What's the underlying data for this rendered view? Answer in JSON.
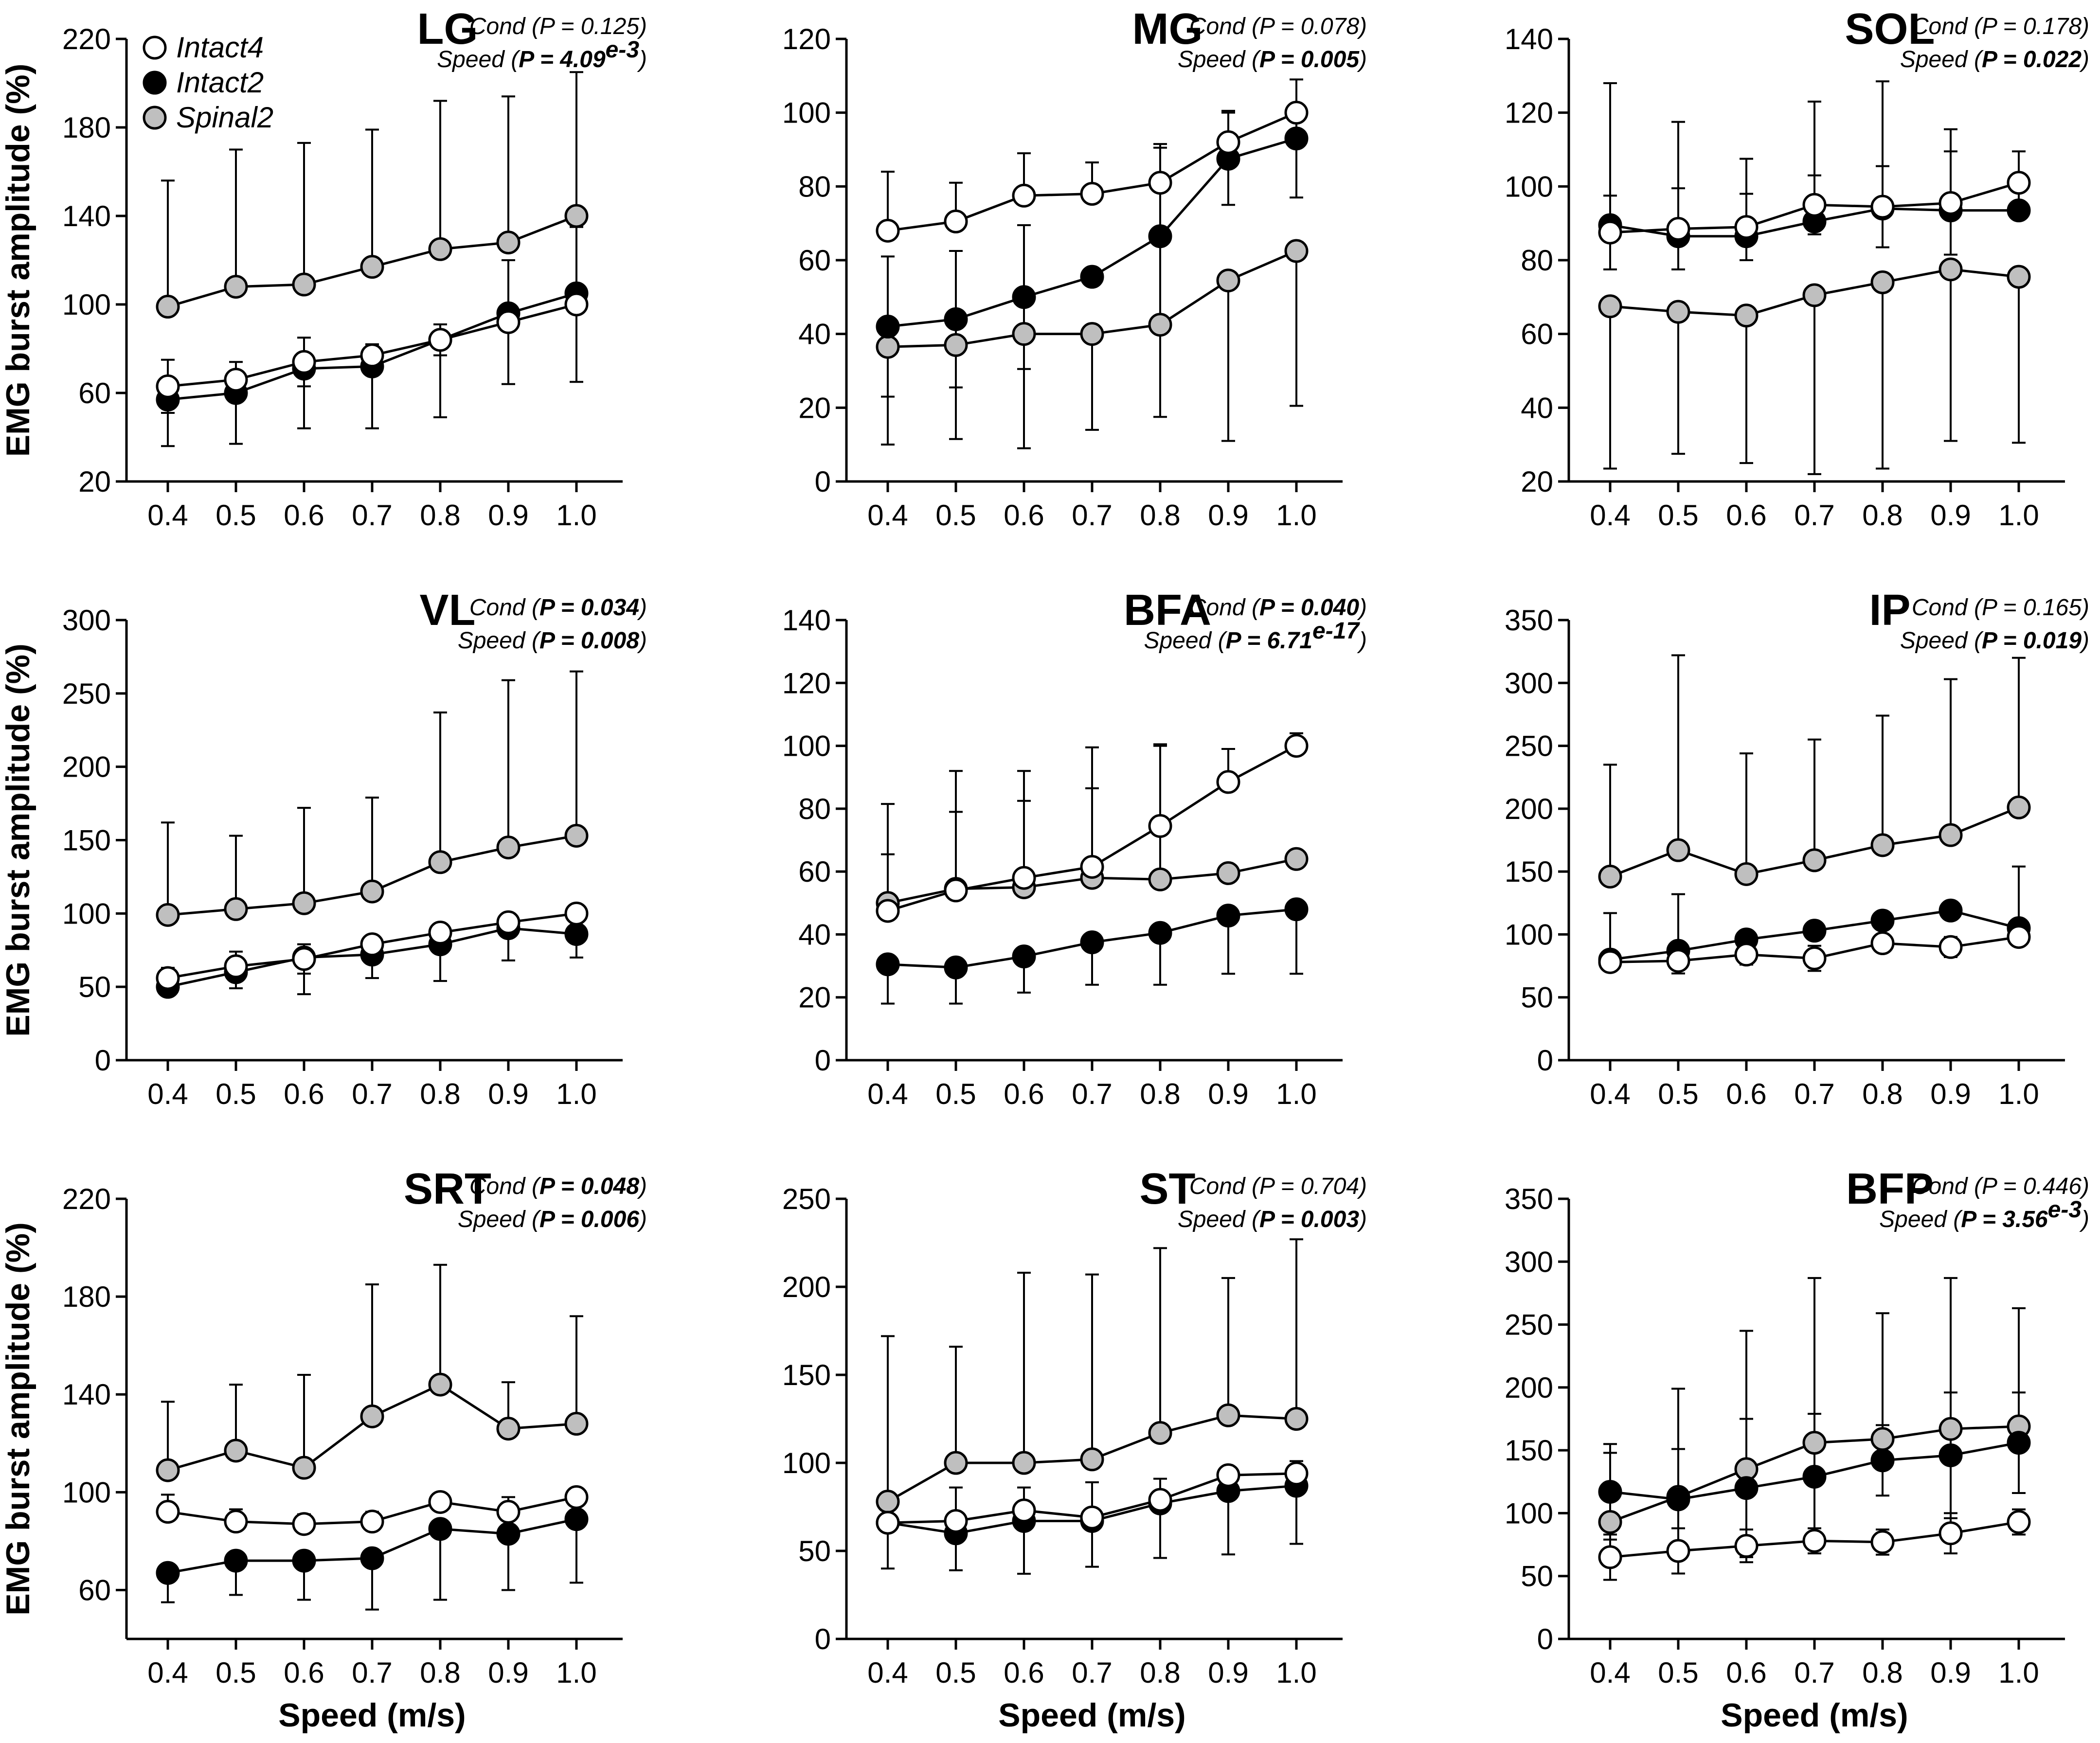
{
  "figure": {
    "ylabel": "EMG burst amplitude (%)",
    "xlabel": "Speed (m/s)"
  },
  "legend": {
    "intact4": "Intact4",
    "intact2": "Intact2",
    "spinal2": "Spinal2"
  },
  "colors": {
    "intact4": "#ffffff",
    "intact2": "#000000",
    "spinal2": "#bfbfbf",
    "stroke": "#000000"
  },
  "chart_data": [
    {
      "type": "line",
      "title": "LG",
      "xlabel": "",
      "ylabel": "EMG burst amplitude (%)",
      "stat_cond": {
        "prefix": "Cond (",
        "value": "P = 0.125",
        "exp": "",
        "suffix": ")",
        "bold": false
      },
      "stat_speed": {
        "prefix": "Speed (",
        "value": "P = 4.09",
        "exp": "e-3",
        "suffix": ")",
        "bold": true
      },
      "x": [
        "0.4",
        "0.5",
        "0.6",
        "0.7",
        "0.8",
        "0.9",
        "1.0"
      ],
      "ylim": [
        20,
        220
      ],
      "yticks": [
        "20",
        "60",
        "100",
        "140",
        "180",
        "220"
      ],
      "series": [
        {
          "name": "Spinal2",
          "values": [
            99,
            108,
            109,
            117,
            125,
            128,
            140
          ],
          "err": [
            57,
            62,
            64,
            62,
            67,
            66,
            65
          ],
          "err_dir": "up"
        },
        {
          "name": "Intact2",
          "values": [
            57,
            60,
            71,
            72,
            84,
            96,
            105
          ],
          "err": [
            21,
            23,
            27,
            28,
            35,
            0,
            0
          ],
          "err_dir": "down"
        },
        {
          "name": "Intact4",
          "values": [
            63,
            66,
            74,
            77,
            84,
            92,
            100
          ],
          "err": [
            12,
            8,
            11,
            5,
            7,
            28,
            35
          ],
          "err_dir": "both"
        }
      ]
    },
    {
      "type": "line",
      "title": "MG",
      "xlabel": "",
      "ylabel": "",
      "stat_cond": {
        "prefix": "Cond (",
        "value": "P = 0.078",
        "exp": "",
        "suffix": ")",
        "bold": false
      },
      "stat_speed": {
        "prefix": "Speed (",
        "value": "P = 0.005",
        "exp": "",
        "suffix": ")",
        "bold": true
      },
      "x": [
        "0.4",
        "0.5",
        "0.6",
        "0.7",
        "0.8",
        "0.9",
        "1.0"
      ],
      "ylim": [
        0,
        120
      ],
      "yticks": [
        "0",
        "20",
        "40",
        "60",
        "80",
        "100",
        "120"
      ],
      "series": [
        {
          "name": "Spinal2",
          "values": [
            36.5,
            37,
            40,
            40,
            42.5,
            54.5,
            62.5
          ],
          "err": [
            26.5,
            25.5,
            31,
            26,
            25,
            43.5,
            42
          ],
          "err_dir": "down"
        },
        {
          "name": "Intact2",
          "values": [
            42,
            44,
            50,
            55.5,
            66.5,
            87.5,
            93
          ],
          "err": [
            19,
            18.5,
            19.5,
            0,
            24,
            12.5,
            16
          ],
          "err_dir": "both"
        },
        {
          "name": "Intact4",
          "values": [
            68,
            70.5,
            77.5,
            78,
            81,
            92,
            100
          ],
          "err": [
            16,
            10.5,
            11.5,
            8.5,
            10.5,
            8.5,
            0
          ],
          "err_dir": "up"
        }
      ]
    },
    {
      "type": "line",
      "title": "SOL",
      "xlabel": "",
      "ylabel": "",
      "stat_cond": {
        "prefix": "Cond (",
        "value": "P = 0.178",
        "exp": "",
        "suffix": ")",
        "bold": false
      },
      "stat_speed": {
        "prefix": "Speed (",
        "value": "P = 0.022",
        "exp": "",
        "suffix": ")",
        "bold": true
      },
      "x": [
        "0.4",
        "0.5",
        "0.6",
        "0.7",
        "0.8",
        "0.9",
        "1.0"
      ],
      "ylim": [
        20,
        140
      ],
      "yticks": [
        "20",
        "40",
        "60",
        "80",
        "100",
        "120",
        "140"
      ],
      "series": [
        {
          "name": "Spinal2",
          "values": [
            67.5,
            66,
            65,
            70.5,
            74,
            77.5,
            75.5
          ],
          "err": [
            44,
            38.5,
            40,
            48.5,
            50.5,
            46.5,
            45
          ],
          "err_dir": "down"
        },
        {
          "name": "Intact2",
          "values": [
            89.5,
            86.5,
            86.5,
            90.5,
            94,
            93.5,
            93.5
          ],
          "err": [
            38.5,
            31,
            21,
            32.5,
            34.5,
            22,
            0
          ],
          "err_dir": "up"
        },
        {
          "name": "Intact4",
          "values": [
            87.5,
            88.5,
            89,
            95,
            94.5,
            95.5,
            101
          ],
          "err": [
            10,
            11,
            9,
            8,
            11,
            14,
            8.5
          ],
          "err_dir": "both"
        }
      ]
    },
    {
      "type": "line",
      "title": "VL",
      "xlabel": "",
      "ylabel": "EMG burst amplitude (%)",
      "stat_cond": {
        "prefix": "Cond (",
        "value": "P = 0.034",
        "exp": "",
        "suffix": ")",
        "bold": true
      },
      "stat_speed": {
        "prefix": "Speed (",
        "value": "P = 0.008",
        "exp": "",
        "suffix": ")",
        "bold": true
      },
      "x": [
        "0.4",
        "0.5",
        "0.6",
        "0.7",
        "0.8",
        "0.9",
        "1.0"
      ],
      "ylim": [
        0,
        300
      ],
      "yticks": [
        "0",
        "50",
        "100",
        "150",
        "200",
        "250",
        "300"
      ],
      "series": [
        {
          "name": "Spinal2",
          "values": [
            99,
            103,
            107,
            115,
            135,
            145,
            153
          ],
          "err": [
            63,
            50,
            65,
            64,
            102,
            114,
            112
          ],
          "err_dir": "up"
        },
        {
          "name": "Intact2",
          "values": [
            50,
            60,
            70,
            72,
            79,
            90,
            86
          ],
          "err": [
            0,
            11,
            25,
            16,
            25,
            22,
            16
          ],
          "err_dir": "down"
        },
        {
          "name": "Intact4",
          "values": [
            56,
            64,
            69,
            79,
            87,
            94,
            100
          ],
          "err": [
            7,
            10,
            10,
            6,
            0,
            0,
            0
          ],
          "err_dir": "both"
        }
      ]
    },
    {
      "type": "line",
      "title": "BFA",
      "xlabel": "",
      "ylabel": "",
      "stat_cond": {
        "prefix": "Cond (",
        "value": "P = 0.040",
        "exp": "",
        "suffix": ")",
        "bold": true
      },
      "stat_speed": {
        "prefix": "Speed (",
        "value": "P = 6.71",
        "exp": "e-17",
        "suffix": ")",
        "bold": true
      },
      "x": [
        "0.4",
        "0.5",
        "0.6",
        "0.7",
        "0.8",
        "0.9",
        "1.0"
      ],
      "ylim": [
        0,
        140
      ],
      "yticks": [
        "0",
        "20",
        "40",
        "60",
        "80",
        "100",
        "120",
        "140"
      ],
      "series": [
        {
          "name": "Spinal2",
          "values": [
            50,
            54.5,
            55,
            58,
            57.5,
            59.5,
            64
          ],
          "err": [
            31.5,
            37.5,
            37,
            41.5,
            42.5,
            0,
            0
          ],
          "err_dir": "up"
        },
        {
          "name": "Intact2",
          "values": [
            30.5,
            29.5,
            33,
            37.5,
            40.5,
            46,
            48
          ],
          "err": [
            12.5,
            11.5,
            11.5,
            13.5,
            16.5,
            18.5,
            20.5
          ],
          "err_dir": "down"
        },
        {
          "name": "Intact4",
          "values": [
            47.5,
            54,
            58,
            61.5,
            74.5,
            88.5,
            100
          ],
          "err": [
            18,
            25,
            24.5,
            25,
            26,
            10.5,
            4
          ],
          "err_dir": "up"
        }
      ]
    },
    {
      "type": "line",
      "title": "IP",
      "xlabel": "",
      "ylabel": "",
      "stat_cond": {
        "prefix": "Cond (",
        "value": "P = 0.165",
        "exp": "",
        "suffix": ")",
        "bold": false
      },
      "stat_speed": {
        "prefix": "Speed (",
        "value": "P = 0.019",
        "exp": "",
        "suffix": ")",
        "bold": true
      },
      "x": [
        "0.4",
        "0.5",
        "0.6",
        "0.7",
        "0.8",
        "0.9",
        "1.0"
      ],
      "ylim": [
        0,
        350
      ],
      "yticks": [
        "0",
        "50",
        "100",
        "150",
        "200",
        "250",
        "300",
        "350"
      ],
      "series": [
        {
          "name": "Spinal2",
          "values": [
            146,
            167,
            148,
            159,
            171,
            179,
            201
          ],
          "err": [
            89,
            155,
            96,
            96,
            103,
            124,
            119
          ],
          "err_dir": "up"
        },
        {
          "name": "Intact2",
          "values": [
            80,
            87,
            96,
            103,
            111,
            119,
            105
          ],
          "err": [
            37,
            45,
            0,
            0,
            0,
            0,
            49
          ],
          "err_dir": "up"
        },
        {
          "name": "Intact4",
          "values": [
            78,
            79,
            84,
            81,
            93,
            90,
            98
          ],
          "err": [
            5,
            10,
            8,
            10,
            0,
            8,
            0
          ],
          "err_dir": "both"
        }
      ]
    },
    {
      "type": "line",
      "title": "SRT",
      "xlabel": "Speed (m/s)",
      "ylabel": "EMG burst amplitude (%)",
      "stat_cond": {
        "prefix": "Cond (",
        "value": "P = 0.048",
        "exp": "",
        "suffix": ")",
        "bold": true
      },
      "stat_speed": {
        "prefix": "Speed (",
        "value": "P = 0.006",
        "exp": "",
        "suffix": ")",
        "bold": true
      },
      "x": [
        "0.4",
        "0.5",
        "0.6",
        "0.7",
        "0.8",
        "0.9",
        "1.0"
      ],
      "ylim": [
        40,
        220
      ],
      "yticks": [
        "60",
        "100",
        "140",
        "180",
        "220"
      ],
      "series": [
        {
          "name": "Spinal2",
          "values": [
            109,
            117,
            110,
            131,
            144,
            126,
            128
          ],
          "err": [
            28,
            27,
            38,
            54,
            49,
            19,
            44
          ],
          "err_dir": "up"
        },
        {
          "name": "Intact2",
          "values": [
            67,
            72,
            72,
            73,
            85,
            83,
            89
          ],
          "err": [
            12,
            14,
            16,
            21,
            29,
            23,
            26
          ],
          "err_dir": "down"
        },
        {
          "name": "Intact4",
          "values": [
            92,
            88,
            87,
            88,
            96,
            92,
            98
          ],
          "err": [
            7,
            5,
            4,
            4,
            0,
            6,
            0
          ],
          "err_dir": "up"
        }
      ]
    },
    {
      "type": "line",
      "title": "ST",
      "xlabel": "Speed (m/s)",
      "ylabel": "",
      "stat_cond": {
        "prefix": "Cond (",
        "value": "P = 0.704",
        "exp": "",
        "suffix": ")",
        "bold": false
      },
      "stat_speed": {
        "prefix": "Speed (",
        "value": "P = 0.003",
        "exp": "",
        "suffix": ")",
        "bold": true
      },
      "x": [
        "0.4",
        "0.5",
        "0.6",
        "0.7",
        "0.8",
        "0.9",
        "1.0"
      ],
      "ylim": [
        0,
        250
      ],
      "yticks": [
        "0",
        "50",
        "100",
        "150",
        "200",
        "250"
      ],
      "series": [
        {
          "name": "Spinal2",
          "values": [
            78,
            100,
            100,
            102,
            117,
            127,
            125
          ],
          "err": [
            94,
            66,
            108,
            105,
            105,
            78,
            102
          ],
          "err_dir": "up"
        },
        {
          "name": "Intact2",
          "values": [
            66,
            60,
            67,
            67,
            77,
            84,
            87
          ],
          "err": [
            26,
            21,
            30,
            26,
            31,
            36,
            33
          ],
          "err_dir": "down"
        },
        {
          "name": "Intact4",
          "values": [
            66,
            67,
            73,
            69,
            79,
            93,
            94
          ],
          "err": [
            0,
            19,
            13,
            20,
            12,
            0,
            7
          ],
          "err_dir": "up"
        }
      ]
    },
    {
      "type": "line",
      "title": "BFP",
      "xlabel": "Speed (m/s)",
      "ylabel": "",
      "stat_cond": {
        "prefix": "Cond (",
        "value": "P = 0.446",
        "exp": "",
        "suffix": ")",
        "bold": false
      },
      "stat_speed": {
        "prefix": "Speed (",
        "value": "P = 3.56",
        "exp": "e-3",
        "suffix": ")",
        "bold": true
      },
      "x": [
        "0.4",
        "0.5",
        "0.6",
        "0.7",
        "0.8",
        "0.9",
        "1.0"
      ],
      "ylim": [
        0,
        350
      ],
      "yticks": [
        "0",
        "50",
        "100",
        "150",
        "200",
        "250",
        "300",
        "350"
      ],
      "series": [
        {
          "name": "Spinal2",
          "values": [
            93,
            113,
            135,
            156,
            159,
            167,
            169
          ],
          "err": [
            55,
            86,
            110,
            131,
            100,
            120,
            94
          ],
          "err_dir": "up"
        },
        {
          "name": "Intact2",
          "values": [
            117,
            111,
            120,
            129,
            142,
            146,
            156
          ],
          "err": [
            38,
            40,
            55,
            50,
            28,
            50,
            40
          ],
          "err_dir": "both"
        },
        {
          "name": "Intact4",
          "values": [
            65,
            70,
            74,
            78,
            77,
            84,
            93
          ],
          "err": [
            18,
            18,
            13,
            10,
            10,
            16,
            10
          ],
          "err_dir": "both"
        }
      ]
    }
  ]
}
